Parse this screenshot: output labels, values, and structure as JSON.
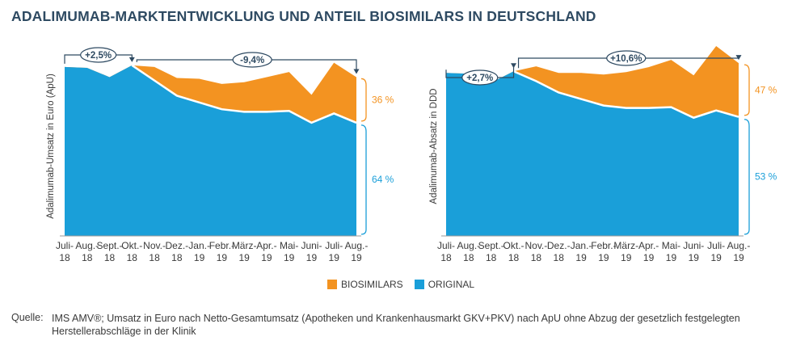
{
  "title": "ADALIMUMAB-MARKTENTWICKLUNG UND ANTEIL BIOSIMILARS IN DEUTSCHLAND",
  "legend": {
    "biosimilars": "BIOSIMILARS",
    "original": "ORIGINAL"
  },
  "colors": {
    "biosimilars": "#f39321",
    "original": "#1a9fd9",
    "annotation": "#2e4a62"
  },
  "source": {
    "label": "Quelle:",
    "text": "IMS AMV®; Umsatz in Euro nach Netto-Gesamtumsatz (Apotheken und Krankenhausmarkt GKV+PKV) nach ApU ohne Abzug der gesetzlich festgelegten Herstellerabschläge in der Klinik"
  },
  "chart_data": [
    {
      "type": "area",
      "ylabel": "Adalimumab-Umsatz in Euro (ApU)",
      "categories": [
        "Juli-18",
        "Aug.-18",
        "Sept.-18",
        "Okt.-18",
        "Nov.-18",
        "Dez.-18",
        "Jan.-19",
        "Febr.-19",
        "März-19",
        "Apr.-19",
        "Mai-19",
        "Juni-19",
        "Juli-19",
        "Aug.-19"
      ],
      "tick_labels": [
        [
          "Juli-",
          "18"
        ],
        [
          "Aug.-",
          "18"
        ],
        [
          "Sept.-",
          "18"
        ],
        [
          "Okt.-",
          "18"
        ],
        [
          "Nov.-",
          "18"
        ],
        [
          "Dez.-",
          "18"
        ],
        [
          "Jan.-",
          "19"
        ],
        [
          "Febr.-",
          "19"
        ],
        [
          "März-",
          "19"
        ],
        [
          "Apr.-",
          "19"
        ],
        [
          "Mai-",
          "19"
        ],
        [
          "Juni-",
          "19"
        ],
        [
          "Juli-",
          "19"
        ],
        [
          "Aug.-",
          "19"
        ]
      ],
      "series": [
        {
          "name": "ORIGINAL",
          "values": [
            100,
            99.5,
            94,
            101,
            92,
            83,
            79,
            75,
            73.5,
            73.5,
            74,
            67,
            72.5,
            67
          ]
        },
        {
          "name": "BIOSIMILARS",
          "values": [
            0,
            0,
            0,
            0,
            8,
            10.5,
            14,
            15,
            17.5,
            20.5,
            23,
            16.5,
            30,
            27
          ]
        }
      ],
      "annotations": [
        {
          "label": "+2,5%",
          "from": "Juli-18",
          "to": "Okt.-18"
        },
        {
          "label": "-9,4%",
          "from": "Okt.-18",
          "to": "Aug.-19"
        }
      ],
      "share_labels": {
        "biosimilars": "36 %",
        "original": "64 %"
      },
      "ylim": [
        0,
        110
      ]
    },
    {
      "type": "area",
      "ylabel": "Adalimumab-Absatz in DDD",
      "categories": [
        "Juli-18",
        "Aug.-18",
        "Sept.-18",
        "Okt.-18",
        "Nov.-18",
        "Dez.-18",
        "Jan.-19",
        "Febr.-19",
        "März-19",
        "Apr.-19",
        "Mai-19",
        "Juni-19",
        "Juli-19",
        "Aug.-19"
      ],
      "tick_labels": [
        [
          "Juli-",
          "18"
        ],
        [
          "Aug.-",
          "18"
        ],
        [
          "Sept.-",
          "18"
        ],
        [
          "Okt.-",
          "18"
        ],
        [
          "Nov.-",
          "18"
        ],
        [
          "Dez.-",
          "18"
        ],
        [
          "Jan.-",
          "19"
        ],
        [
          "Febr.-",
          "19"
        ],
        [
          "März-",
          "19"
        ],
        [
          "Apr.-",
          "19"
        ],
        [
          "Mai-",
          "19"
        ],
        [
          "Juni-",
          "19"
        ],
        [
          "Juli-",
          "19"
        ],
        [
          "Aug.-",
          "19"
        ]
      ],
      "series": [
        {
          "name": "ORIGINAL",
          "values": [
            100,
            99.5,
            94,
            101,
            95,
            88,
            84,
            80,
            78.5,
            78.5,
            79,
            72.5,
            77,
            73
          ]
        },
        {
          "name": "BIOSIMILARS",
          "values": [
            0,
            0,
            0,
            0,
            9,
            12,
            16,
            19,
            22,
            25,
            29,
            26,
            39.5,
            33
          ]
        }
      ],
      "annotations": [
        {
          "label": "+2,7%",
          "from": "Juli-18",
          "to": "Okt.-18"
        },
        {
          "label": "+10,6%",
          "from": "Okt.-18",
          "to": "Aug.-19"
        }
      ],
      "share_labels": {
        "biosimilars": "47 %",
        "original": "53 %"
      },
      "ylim": [
        0,
        114
      ]
    }
  ]
}
